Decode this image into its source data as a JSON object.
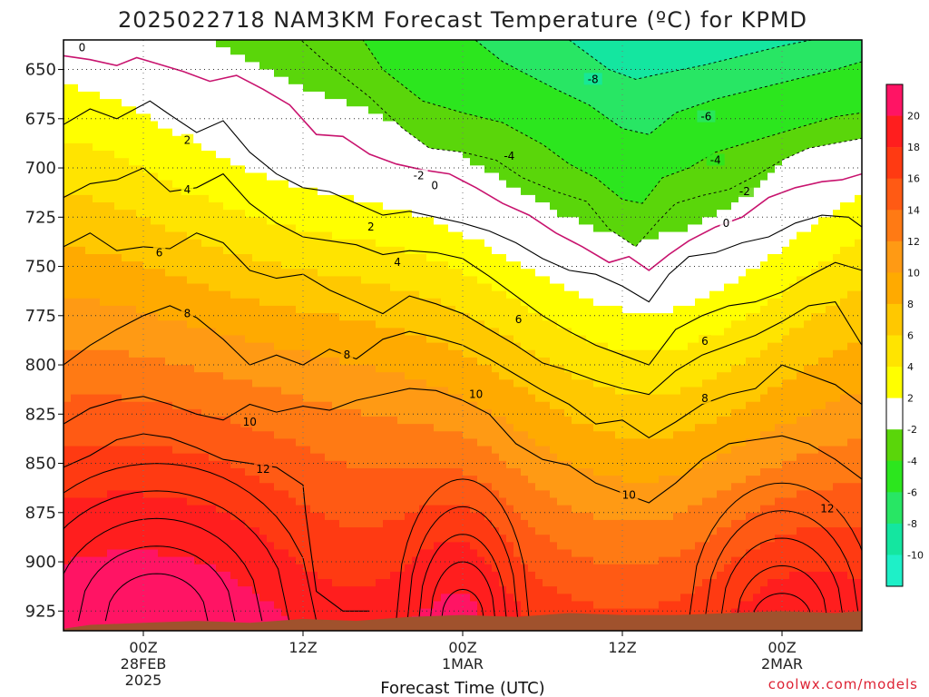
{
  "chart_data": {
    "type": "heatmap",
    "title": "2025022718 NAM3KM Forecast Temperature (ºC) for KPMD",
    "xlabel": "Forecast Time (UTC)",
    "ylabel": "",
    "y_axis": {
      "unit": "hPa",
      "ticks": [
        650,
        675,
        700,
        725,
        750,
        775,
        800,
        825,
        850,
        875,
        900,
        925
      ],
      "ylim": [
        935,
        635
      ],
      "inverted": true
    },
    "x_axis": {
      "ticks": [
        {
          "label": "00Z",
          "sub": "28FEB",
          "sub2": "2025",
          "hour": 0
        },
        {
          "label": "12Z",
          "sub": "",
          "sub2": "",
          "hour": 12
        },
        {
          "label": "00Z",
          "sub": "1MAR",
          "sub2": "",
          "hour": 24
        },
        {
          "label": "12Z",
          "sub": "",
          "sub2": "",
          "hour": 36
        },
        {
          "label": "00Z",
          "sub": "2MAR",
          "sub2": "",
          "hour": 48
        }
      ],
      "xlim_hours": [
        -6,
        54
      ]
    },
    "colorbar": {
      "labels": [
        20,
        18,
        16,
        14,
        12,
        10,
        8,
        6,
        4,
        2,
        -2,
        -4,
        -6,
        -8,
        -10
      ],
      "bins": [
        {
          "lo": 20,
          "hi": 22,
          "color": "#ff1464"
        },
        {
          "lo": 18,
          "hi": 20,
          "color": "#ff1e1e"
        },
        {
          "lo": 16,
          "hi": 18,
          "color": "#ff3a12"
        },
        {
          "lo": 14,
          "hi": 16,
          "color": "#ff5a14"
        },
        {
          "lo": 12,
          "hi": 14,
          "color": "#ff7a14"
        },
        {
          "lo": 10,
          "hi": 12,
          "color": "#ff9a14"
        },
        {
          "lo": 8,
          "hi": 10,
          "color": "#ffaa00"
        },
        {
          "lo": 6,
          "hi": 8,
          "color": "#ffc800"
        },
        {
          "lo": 4,
          "hi": 6,
          "color": "#ffe400"
        },
        {
          "lo": 2,
          "hi": 4,
          "color": "#ffff00"
        },
        {
          "lo": -2,
          "hi": 2,
          "color": "#ffffff"
        },
        {
          "lo": -4,
          "hi": -2,
          "color": "#5ad60a"
        },
        {
          "lo": -6,
          "hi": -4,
          "color": "#2ce61e"
        },
        {
          "lo": -8,
          "hi": -6,
          "color": "#28e664"
        },
        {
          "lo": -10,
          "hi": -8,
          "color": "#14e6a0"
        },
        {
          "lo": -12,
          "hi": -10,
          "color": "#1ef0c8"
        }
      ]
    },
    "ground_color": "#a0522d",
    "zero_line_color": "#c8136e",
    "contour_levels": [
      -8,
      -6,
      -4,
      -2,
      0,
      2,
      4,
      6,
      8,
      10,
      12,
      14,
      16,
      18,
      20
    ],
    "contour_labels": [
      {
        "t": -4.6,
        "p": 639,
        "v": "0"
      },
      {
        "t": 3.3,
        "p": 686,
        "v": "2"
      },
      {
        "t": 3.3,
        "p": 711,
        "v": "4"
      },
      {
        "t": 1.2,
        "p": 743,
        "v": "6"
      },
      {
        "t": 3.3,
        "p": 774,
        "v": "8"
      },
      {
        "t": 8.0,
        "p": 829,
        "v": "10"
      },
      {
        "t": 9.0,
        "p": 853,
        "v": "12"
      },
      {
        "t": 20.7,
        "p": 704,
        "v": "-2"
      },
      {
        "t": 21.9,
        "p": 709,
        "v": "0"
      },
      {
        "t": 17.1,
        "p": 730,
        "v": "2"
      },
      {
        "t": 19.1,
        "p": 748,
        "v": "4"
      },
      {
        "t": 28.2,
        "p": 777,
        "v": "6"
      },
      {
        "t": 15.3,
        "p": 795,
        "v": "8"
      },
      {
        "t": 25.0,
        "p": 815,
        "v": "10"
      },
      {
        "t": 27.5,
        "p": 694,
        "v": "-4"
      },
      {
        "t": 33.8,
        "p": 655,
        "v": "-8"
      },
      {
        "t": 36.5,
        "p": 866,
        "v": "10"
      },
      {
        "t": 42.3,
        "p": 674,
        "v": "-6"
      },
      {
        "t": 43.0,
        "p": 696,
        "v": "-4"
      },
      {
        "t": 45.2,
        "p": 712,
        "v": "-2"
      },
      {
        "t": 43.8,
        "p": 728,
        "v": "0"
      },
      {
        "t": 42.2,
        "p": 788,
        "v": "6"
      },
      {
        "t": 42.2,
        "p": 817,
        "v": "8"
      },
      {
        "t": 51.4,
        "p": 873,
        "v": "12"
      }
    ]
  },
  "watermark": "coolwx.com/models"
}
